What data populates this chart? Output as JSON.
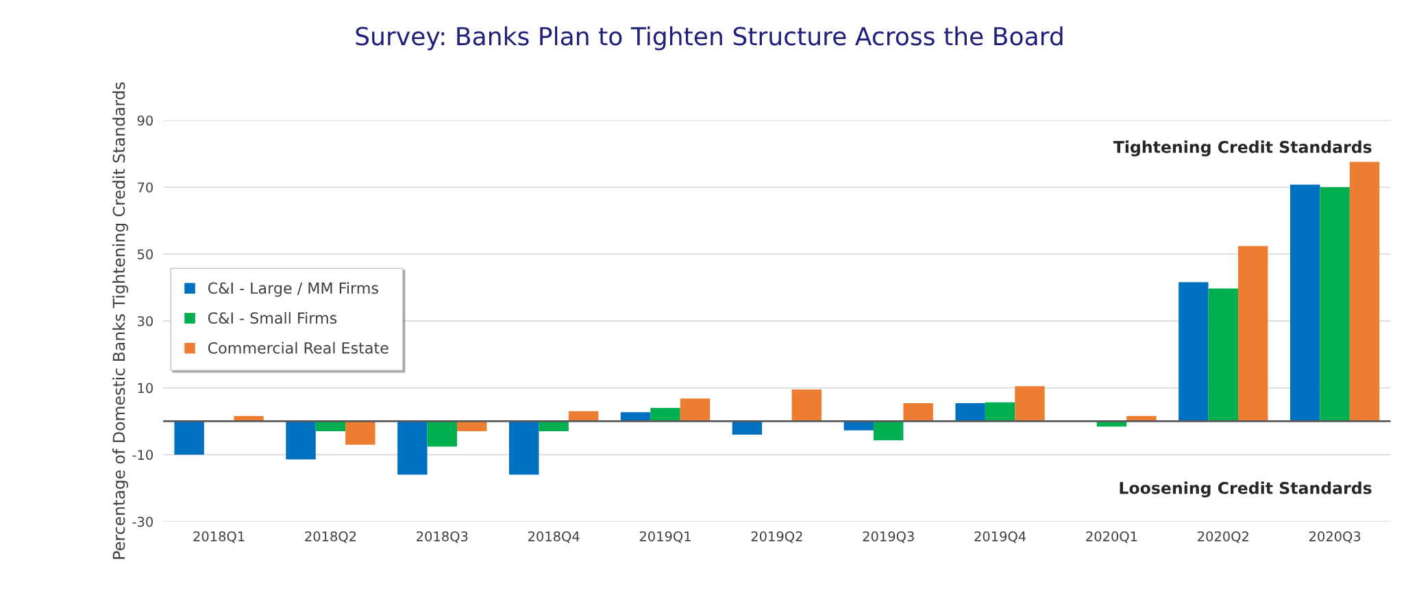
{
  "chart_data": {
    "type": "bar",
    "title": "Survey: Banks Plan to Tighten Structure Across the Board",
    "ylabel": "Percentage of Domestic Banks Tightening Credit Standards",
    "categories": [
      "2018Q1",
      "2018Q2",
      "2018Q3",
      "2018Q4",
      "2019Q1",
      "2019Q2",
      "2019Q3",
      "2019Q4",
      "2020Q1",
      "2020Q2",
      "2020Q3"
    ],
    "series": [
      {
        "name": "C&I - Large / MM Firms",
        "color": "#0070c0",
        "values": [
          -10,
          -11.4,
          -16,
          -16,
          2.7,
          -4,
          -2.7,
          5.4,
          0,
          41.6,
          70.8
        ]
      },
      {
        "name": "C&I - Small Firms",
        "color": "#00b050",
        "values": [
          0,
          -3,
          -7.6,
          -3,
          4,
          0,
          -5.7,
          5.7,
          -1.6,
          39.7,
          70
        ]
      },
      {
        "name": "Commercial Real Estate",
        "color": "#ed7d31",
        "values": [
          1.6,
          -7,
          -3,
          3,
          6.8,
          9.5,
          5.4,
          10.5,
          1.6,
          52.4,
          77.6
        ]
      }
    ],
    "ylim": [
      -30,
      90
    ],
    "yticks": [
      -30,
      -10,
      10,
      30,
      50,
      70,
      90
    ],
    "grid": "y",
    "legend": "top left",
    "annotations": [
      "Tightening Credit Standards",
      "Loosening Credit Standards"
    ]
  }
}
